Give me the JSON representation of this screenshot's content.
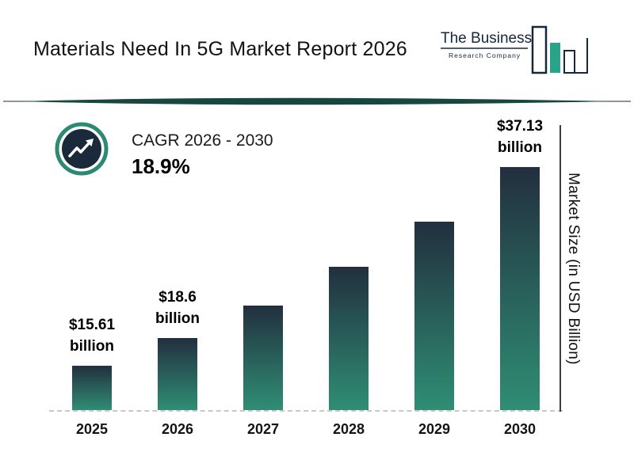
{
  "header": {
    "title": "Materials Need In 5G Market Report 2026",
    "logo": {
      "line1": "The Business",
      "line2": "Research Company"
    }
  },
  "cagr": {
    "label": "CAGR 2026 - 2030",
    "value": "18.9%"
  },
  "colors": {
    "navy": "#1b2a3a",
    "teal_ring": "#2c8a72",
    "bar_top": "#222f3e",
    "bar_bottom": "#2f8e74",
    "divider": "#17473e",
    "logo_green": "#2aa38b"
  },
  "chart_data": {
    "type": "bar",
    "title": "Materials Need In 5G Market Report 2026",
    "ylabel": "Market Size (in USD Billion)",
    "categories": [
      "2025",
      "2026",
      "2027",
      "2028",
      "2029",
      "2030"
    ],
    "values": [
      15.61,
      18.6,
      22.1,
      26.3,
      31.2,
      37.13
    ],
    "value_labels": [
      [
        "$15.61",
        "billion"
      ],
      [
        "$18.6",
        "billion"
      ],
      null,
      null,
      null,
      [
        "$37.13",
        "billion"
      ]
    ],
    "cagr_label": "CAGR 2026 - 2030",
    "cagr_value": "18.9%",
    "legend": "none",
    "grid": "off",
    "baseline_style": "dashed"
  }
}
